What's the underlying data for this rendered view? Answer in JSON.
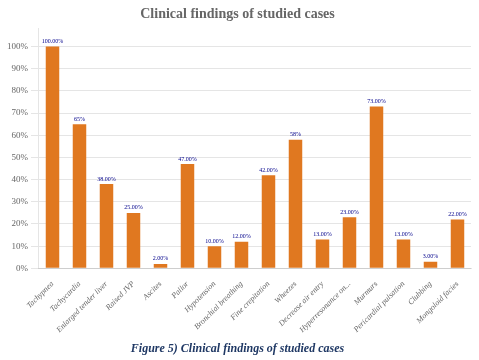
{
  "chart_data": {
    "type": "bar",
    "title": "Clinical findings of studied cases",
    "caption": "Figure 5) Clinical findings of studied cases",
    "categories": [
      "Tachypnea",
      "Tachycardia",
      "Enlarged tender liver",
      "Raised JVP",
      "Ascites",
      "Pallor",
      "Hypotension",
      "Bronchial breathing",
      "Fine crepitation",
      "Wheezes",
      "Decrease air entry",
      "Hyperresonance on...",
      "Murmurs",
      "Pericardial pulsation",
      "Clubbing",
      "Mongoloid facies"
    ],
    "values": [
      100,
      65,
      38,
      25,
      2,
      47,
      10,
      12,
      42,
      58,
      13,
      23,
      73,
      13,
      3,
      22
    ],
    "value_labels": [
      "100.00%",
      "65%",
      "38.00%",
      "25.00%",
      "2.00%",
      "47.00%",
      "10.00%",
      "12.00%",
      "42.00%",
      "58%",
      "13.00%",
      "23.00%",
      "73.00%",
      "13.00%",
      "3.00%",
      "22.00%"
    ],
    "color": "#E07820",
    "ylim": [
      0,
      108
    ],
    "yticks": [
      {
        "value": 0,
        "label": "0%"
      },
      {
        "value": 10,
        "label": "10%"
      },
      {
        "value": 20,
        "label": "20%"
      },
      {
        "value": 30,
        "label": "30%"
      },
      {
        "value": 40,
        "label": "40%"
      },
      {
        "value": 50,
        "label": "50%"
      },
      {
        "value": 60,
        "label": "60%"
      },
      {
        "value": 70,
        "label": "70%"
      },
      {
        "value": 80,
        "label": "80%"
      },
      {
        "value": 90,
        "label": "90%"
      },
      {
        "value": 100,
        "label": "100%"
      }
    ],
    "grid": true
  }
}
